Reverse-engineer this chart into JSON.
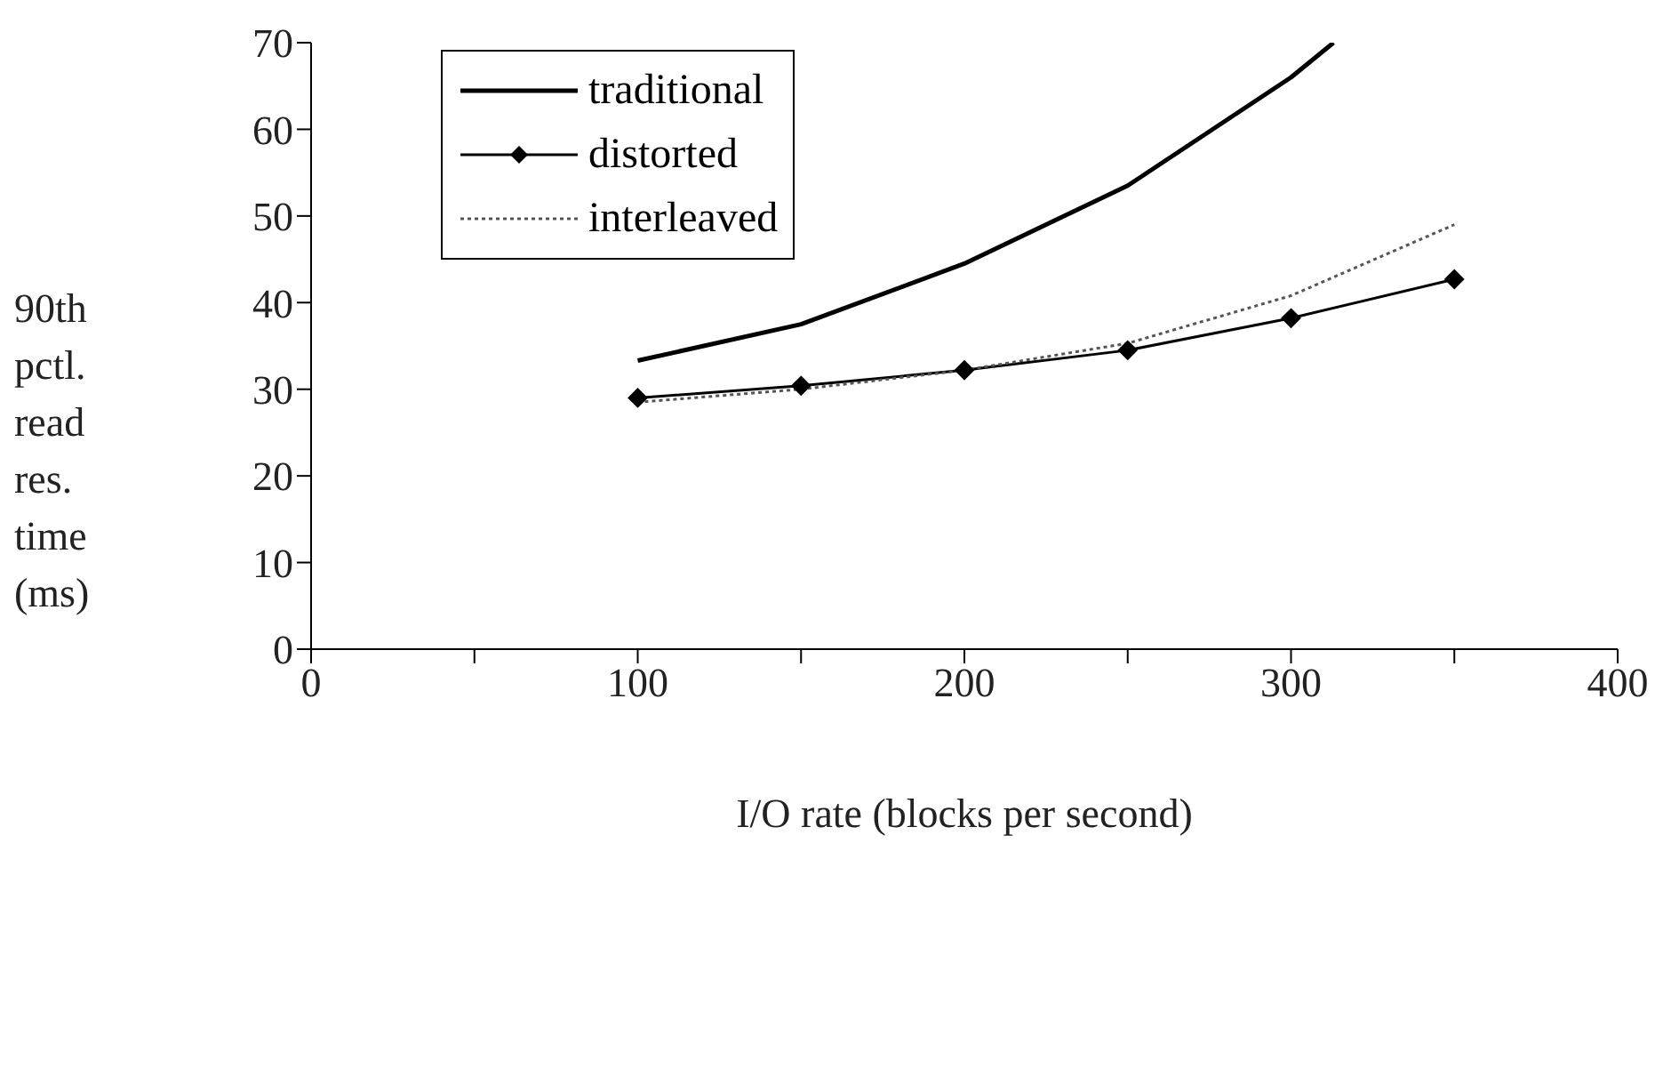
{
  "chart_data": {
    "type": "line",
    "xlabel": "I/O rate (blocks per second)",
    "ylabel": "90th pctl. read res. time (ms)",
    "xlim": [
      0,
      400
    ],
    "xticks": [
      0,
      {
        "value": 50,
        "label": null
      },
      100,
      {
        "value": 150,
        "label": null
      },
      200,
      {
        "value": 250,
        "label": null
      },
      300,
      {
        "value": 350,
        "label": null
      },
      400
    ],
    "ylim": [
      0,
      70
    ],
    "yticks": [
      0,
      10,
      20,
      30,
      40,
      50,
      60,
      70
    ],
    "grid": false,
    "legend": "top left",
    "series": [
      {
        "name": "traditional",
        "color": "#000000",
        "x": [
          100,
          150,
          200,
          250,
          300,
          313
        ],
        "values": [
          33.3,
          37.5,
          44.5,
          53.5,
          66,
          70
        ],
        "marker": "none",
        "line_style": "solid"
      },
      {
        "name": "distorted",
        "color": "#000000",
        "x": [
          100,
          150,
          200,
          250,
          300,
          350
        ],
        "values": [
          29,
          30.4,
          32.2,
          34.5,
          38.2,
          42.7
        ],
        "marker": "diamond",
        "line_style": "solid"
      },
      {
        "name": "interleaved",
        "color": "#555555",
        "x": [
          100,
          150,
          200,
          250,
          300,
          350
        ],
        "values": [
          28.5,
          30,
          32.2,
          35.3,
          40.8,
          49
        ],
        "marker": "none",
        "line_style": "dotted"
      }
    ]
  }
}
